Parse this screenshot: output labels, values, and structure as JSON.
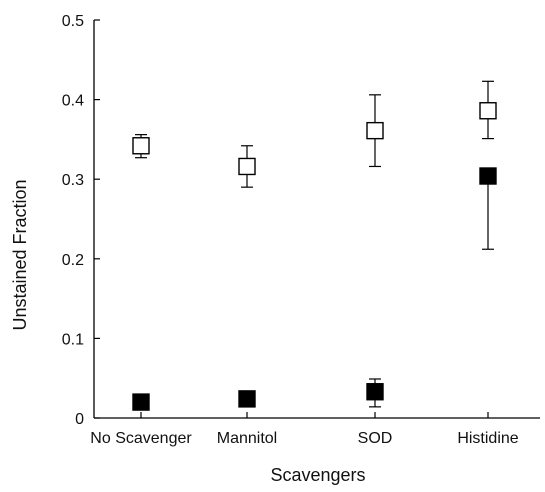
{
  "chart_data": {
    "type": "scatter",
    "title": "",
    "xlabel": "Scavengers",
    "ylabel": "Unstained Fraction",
    "categories": [
      "No Scavenger",
      "Mannitol",
      "SOD",
      "Histidine"
    ],
    "ylim": [
      0,
      0.5
    ],
    "yticks": [
      "0",
      "0.1",
      "0.2",
      "0.3",
      "0.4",
      "0.5"
    ],
    "grid": false,
    "legend": "none",
    "series": [
      {
        "marker": "open-square",
        "color": "#000000",
        "values": [
          0.342,
          0.316,
          0.361,
          0.386
        ],
        "error_low": [
          0.327,
          0.29,
          0.316,
          0.351
        ],
        "error_high": [
          0.356,
          0.342,
          0.406,
          0.423
        ]
      },
      {
        "marker": "filled-square",
        "color": "#000000",
        "values": [
          0.02,
          0.024,
          0.033,
          0.304
        ],
        "error_low": [
          0.02,
          0.016,
          0.014,
          0.212
        ],
        "error_high": [
          0.02,
          0.024,
          0.049,
          0.304
        ]
      }
    ]
  }
}
